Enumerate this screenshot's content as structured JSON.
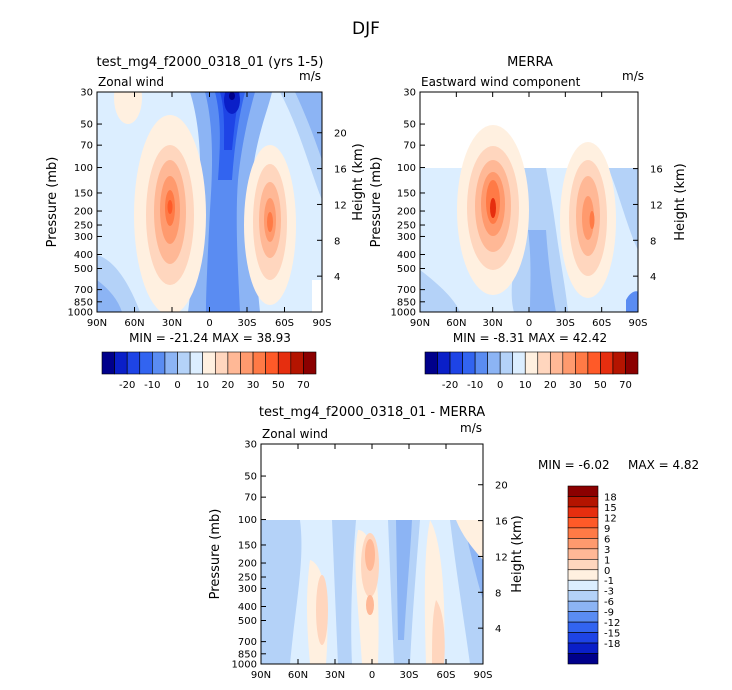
{
  "page": {
    "title": "DJF"
  },
  "colors": {
    "neg": [
      "#00008b",
      "#0a1fc8",
      "#1e44e6",
      "#3264f0",
      "#5a8cf2",
      "#8cb4f4",
      "#b4d2f8",
      "#dceeff"
    ],
    "pos": [
      "#fff0e0",
      "#ffd6be",
      "#ffb896",
      "#ff9a6e",
      "#ff7a46",
      "#ff5a28",
      "#e62e0f",
      "#b41400",
      "#8b0000"
    ]
  },
  "chart_data": [
    {
      "id": "model",
      "type": "contour",
      "title": "test_mg4_f2000_0318_01 (yrs 1-5)",
      "left_label": "Zonal wind",
      "units": "m/s",
      "ylabel": "Pressure (mb)",
      "ylabel_right": "Height (km)",
      "x_ticks": [
        "90N",
        "60N",
        "30N",
        "0",
        "30S",
        "60S",
        "90S"
      ],
      "y_ticks": [
        "30",
        "50",
        "70",
        "100",
        "150",
        "200",
        "250",
        "300",
        "400",
        "500",
        "700",
        "850",
        "1000"
      ],
      "height_ticks": [
        "20",
        "16",
        "12",
        "8",
        "4"
      ],
      "min_max_text": "MIN = -21.24   MAX = 38.93",
      "data_top_mb": 30,
      "jets": [
        {
          "lat": -30,
          "pressure": 200,
          "max": 38.93
        },
        {
          "lat": 45,
          "pressure": 250,
          "max": 33
        }
      ],
      "min_location": {
        "lat": 15,
        "pressure": 30,
        "value": -21.24
      }
    },
    {
      "id": "obs",
      "type": "contour",
      "title": "MERRA",
      "left_label": "Eastward wind component",
      "units": "m/s",
      "ylabel": "Pressure (mb)",
      "ylabel_right": "Height (km)",
      "x_ticks": [
        "90N",
        "60N",
        "30N",
        "0",
        "30S",
        "60S",
        "90S"
      ],
      "y_ticks": [
        "30",
        "50",
        "70",
        "100",
        "150",
        "200",
        "250",
        "300",
        "400",
        "500",
        "700",
        "850",
        "1000"
      ],
      "height_ticks": [
        "16",
        "12",
        "8",
        "4"
      ],
      "min_max_text": "MIN = -8.31   MAX = 42.42",
      "data_top_mb": 100,
      "jets": [
        {
          "lat": -30,
          "pressure": 200,
          "max": 42.42
        },
        {
          "lat": 45,
          "pressure": 250,
          "max": 30
        }
      ],
      "min_location": {
        "lat": 10,
        "pressure": 500,
        "value": -8.31
      }
    },
    {
      "id": "diff",
      "type": "contour",
      "title": "test_mg4_f2000_0318_01 - MERRA",
      "left_label": "Zonal wind",
      "units": "m/s",
      "ylabel": "Pressure (mb)",
      "ylabel_right": "Height (km)",
      "x_ticks": [
        "90N",
        "60N",
        "30N",
        "0",
        "30S",
        "60S",
        "90S"
      ],
      "y_ticks": [
        "30",
        "50",
        "70",
        "100",
        "150",
        "200",
        "250",
        "300",
        "400",
        "500",
        "700",
        "850",
        "1000"
      ],
      "height_ticks": [
        "20",
        "16",
        "12",
        "8",
        "4"
      ],
      "min_text": "MIN =   -6.02",
      "max_text": "MAX =    4.82",
      "data_top_mb": 100,
      "positive_bands_lat": [
        -35,
        0,
        50
      ],
      "negative_bands_lat": [
        -70,
        -15,
        20,
        80
      ]
    }
  ],
  "colorbar_full": {
    "labels": [
      "-20",
      "-10",
      "0",
      "10",
      "20",
      "30",
      "50",
      "70"
    ]
  },
  "colorbar_diff": {
    "labels": [
      "18",
      "15",
      "12",
      "9",
      "6",
      "3",
      "1",
      "0",
      "-1",
      "-3",
      "-6",
      "-9",
      "-12",
      "-15",
      "-18"
    ]
  }
}
